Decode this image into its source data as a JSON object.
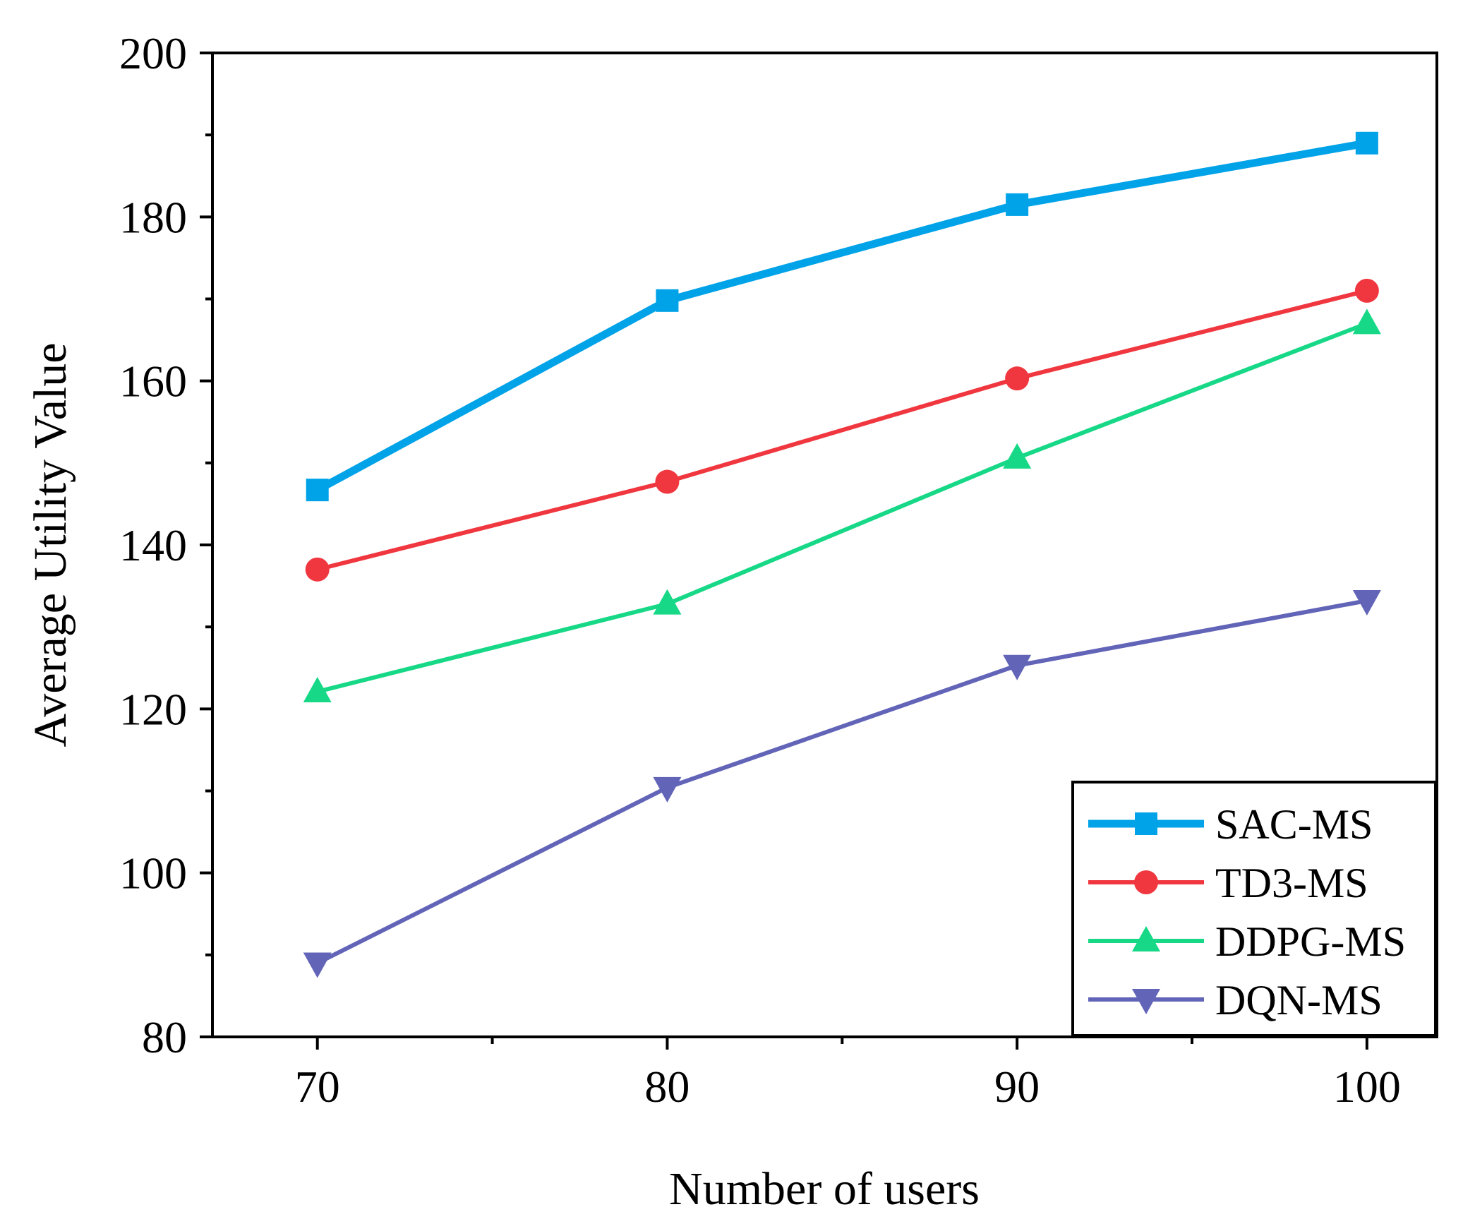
{
  "chart_data": {
    "type": "line",
    "title": "",
    "xlabel": "Number of users",
    "ylabel": "Average Utility Value",
    "x": [
      70,
      80,
      90,
      100
    ],
    "xlim": [
      67,
      102
    ],
    "ylim": [
      80,
      200
    ],
    "xticks": [
      70,
      80,
      90,
      100
    ],
    "xticks_minor": [
      75,
      85,
      95
    ],
    "yticks": [
      80,
      100,
      120,
      140,
      160,
      180,
      200
    ],
    "yticks_minor": [
      90,
      110,
      130,
      150,
      170,
      190
    ],
    "grid": false,
    "legend_position": "bottom-right",
    "series": [
      {
        "name": "SAC-MS",
        "values": [
          146.7,
          169.8,
          181.5,
          189.0
        ],
        "color": "#00A2E8",
        "marker": "square",
        "line": "thick"
      },
      {
        "name": "TD3-MS",
        "values": [
          137.0,
          147.7,
          160.3,
          171.0
        ],
        "color": "#F0373F",
        "marker": "circle",
        "line": "normal"
      },
      {
        "name": "DDPG-MS",
        "values": [
          122.1,
          132.8,
          150.6,
          167.0
        ],
        "color": "#17D886",
        "marker": "triangle-up",
        "line": "normal"
      },
      {
        "name": "DQN-MS",
        "values": [
          89.0,
          110.4,
          125.3,
          133.2
        ],
        "color": "#6264B8",
        "marker": "triangle-down",
        "line": "normal"
      }
    ]
  }
}
